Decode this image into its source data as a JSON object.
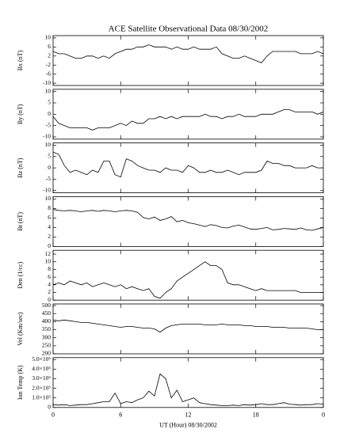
{
  "chart_data": [
    {
      "type": "line",
      "title": "ACE Satellite Observational Data   08/30/2002",
      "ylabel": "Bx (nT)",
      "x": [
        0,
        0.5,
        1,
        1.5,
        2,
        2.5,
        3,
        3.5,
        4,
        4.5,
        5,
        5.5,
        6,
        6.5,
        7,
        7.5,
        8,
        8.5,
        9,
        9.5,
        10,
        10.5,
        11,
        11.5,
        12,
        12.5,
        13,
        13.5,
        14,
        14.5,
        15,
        15.5,
        16,
        16.5,
        17,
        17.5,
        18,
        18.5,
        19,
        19.5,
        20,
        20.5,
        21,
        21.5,
        22,
        22.5,
        23,
        23.5,
        24
      ],
      "values": [
        4,
        3,
        3,
        2,
        1,
        1,
        2,
        2,
        1,
        2,
        1,
        3,
        4,
        5,
        5,
        6,
        6,
        7,
        6,
        6,
        6,
        5,
        6,
        5,
        5,
        6,
        5,
        5,
        5,
        6,
        3,
        2,
        1,
        1,
        2,
        1,
        0,
        -1,
        2,
        4,
        4,
        4,
        4,
        4,
        3,
        3,
        3,
        4,
        3
      ],
      "xlim": [
        0,
        24
      ],
      "xticks": [
        0,
        6,
        12,
        18,
        24
      ],
      "ylim": [
        -11,
        11
      ],
      "yticks": [
        10,
        6,
        2,
        -2,
        -6,
        -10
      ]
    },
    {
      "type": "line",
      "ylabel": "By (nT)",
      "x": [
        0,
        0.5,
        1,
        1.5,
        2,
        2.5,
        3,
        3.5,
        4,
        4.5,
        5,
        5.5,
        6,
        6.5,
        7,
        7.5,
        8,
        8.5,
        9,
        9.5,
        10,
        10.5,
        11,
        11.5,
        12,
        12.5,
        13,
        13.5,
        14,
        14.5,
        15,
        15.5,
        16,
        16.5,
        17,
        17.5,
        18,
        18.5,
        19,
        19.5,
        20,
        20.5,
        21,
        21.5,
        22,
        22.5,
        23,
        23.5,
        24
      ],
      "values": [
        -1,
        -4,
        -5,
        -6,
        -6,
        -6,
        -6,
        -7,
        -6,
        -6,
        -6,
        -5,
        -4,
        -5,
        -3,
        -4,
        -4,
        -2,
        -2,
        -1,
        -2,
        -1,
        -2,
        -1,
        -1,
        -1,
        -1,
        0,
        -1,
        -1,
        -2,
        -1,
        -1,
        0,
        -1,
        -1,
        -1,
        0,
        0,
        0,
        1,
        2,
        2,
        1,
        1,
        1,
        1,
        0,
        1
      ],
      "xlim": [
        0,
        24
      ],
      "xticks": [
        0,
        6,
        12,
        18,
        24
      ],
      "ylim": [
        -11,
        11
      ],
      "yticks": [
        10,
        5,
        0,
        -5,
        -10
      ]
    },
    {
      "type": "line",
      "ylabel": "Bz (nT)",
      "x": [
        0,
        0.5,
        1,
        1.5,
        2,
        2.5,
        3,
        3.5,
        4,
        4.5,
        5,
        5.5,
        6,
        6.5,
        7,
        7.5,
        8,
        8.5,
        9,
        9.5,
        10,
        10.5,
        11,
        11.5,
        12,
        12.5,
        13,
        13.5,
        14,
        14.5,
        15,
        15.5,
        16,
        16.5,
        17,
        17.5,
        18,
        18.5,
        19,
        19.5,
        20,
        20.5,
        21,
        21.5,
        22,
        22.5,
        23,
        23.5,
        24
      ],
      "values": [
        7,
        6,
        1,
        -2,
        -1,
        -2,
        -3,
        -1,
        -2,
        3,
        3,
        -3,
        -4,
        4,
        3,
        1,
        0,
        -1,
        -1,
        -2,
        0,
        -1,
        -1,
        -2,
        1,
        0,
        -2,
        -2,
        -1,
        -2,
        -2,
        -1,
        -2,
        -3,
        -2,
        -2,
        -2,
        -1,
        3,
        2,
        2,
        1,
        1,
        0,
        0,
        0,
        1,
        0,
        0
      ],
      "xlim": [
        0,
        24
      ],
      "xticks": [
        0,
        6,
        12,
        18,
        24
      ],
      "ylim": [
        -11,
        11
      ],
      "yticks": [
        10,
        5,
        0,
        -5,
        -10
      ]
    },
    {
      "type": "line",
      "ylabel": "Bt (nT)",
      "x": [
        0,
        0.5,
        1,
        1.5,
        2,
        2.5,
        3,
        3.5,
        4,
        4.5,
        5,
        5.5,
        6,
        6.5,
        7,
        7.5,
        8,
        8.5,
        9,
        9.5,
        10,
        10.5,
        11,
        11.5,
        12,
        12.5,
        13,
        13.5,
        14,
        14.5,
        15,
        15.5,
        16,
        16.5,
        17,
        17.5,
        18,
        18.5,
        19,
        19.5,
        20,
        20.5,
        21,
        21.5,
        22,
        22.5,
        23,
        23.5,
        24
      ],
      "values": [
        7.8,
        7.6,
        7.5,
        7.6,
        7.5,
        7.3,
        7.5,
        7.6,
        7.4,
        7.6,
        7.5,
        7.3,
        7.5,
        7.6,
        7.5,
        7.2,
        6.1,
        5.8,
        6.2,
        5.5,
        5.8,
        6.3,
        5.2,
        5.5,
        5.0,
        4.8,
        4.5,
        4.2,
        4.6,
        4.4,
        4.0,
        3.9,
        4.3,
        4.5,
        4.1,
        3.7,
        3.6,
        3.8,
        4.0,
        3.5,
        3.6,
        3.8,
        3.7,
        3.6,
        3.9,
        3.5,
        3.4,
        3.7,
        4.0
      ],
      "xlim": [
        0,
        24
      ],
      "xticks": [
        0,
        6,
        12,
        18,
        24
      ],
      "ylim": [
        0,
        10.5
      ],
      "yticks": [
        0,
        2,
        4,
        6,
        8,
        10
      ]
    },
    {
      "type": "line",
      "ylabel": "Den (1/cc)",
      "x": [
        0,
        0.5,
        1,
        1.5,
        2,
        2.5,
        3,
        3.5,
        4,
        4.5,
        5,
        5.5,
        6,
        6.5,
        7,
        7.5,
        8,
        8.5,
        9,
        9.5,
        10,
        10.5,
        11,
        11.5,
        12,
        12.5,
        13,
        13.5,
        14,
        14.5,
        15,
        15.5,
        16,
        16.5,
        17,
        17.5,
        18,
        18.5,
        19,
        19.5,
        20,
        20.5,
        21,
        21.5,
        22,
        22.5,
        23,
        23.5,
        24
      ],
      "values": [
        4,
        4.5,
        4,
        5,
        4.5,
        4,
        4.5,
        3.5,
        4,
        4.5,
        4,
        3.5,
        4,
        3,
        3.5,
        3,
        2.5,
        3,
        1,
        0.5,
        2,
        3,
        5,
        6,
        7,
        8,
        9,
        10,
        9,
        9,
        8,
        4.5,
        4,
        4,
        3.5,
        3,
        2.5,
        3,
        2.5,
        2.5,
        2.5,
        2.5,
        2.5,
        2.5,
        2,
        2,
        2,
        2,
        2
      ],
      "xlim": [
        0,
        24
      ],
      "xticks": [
        0,
        6,
        12,
        18,
        24
      ],
      "ylim": [
        0,
        13
      ],
      "yticks": [
        0,
        2,
        4,
        6,
        8,
        10,
        12
      ]
    },
    {
      "type": "line",
      "ylabel": "Vel (Km/sec)",
      "x": [
        0,
        0.5,
        1,
        1.5,
        2,
        2.5,
        3,
        3.5,
        4,
        4.5,
        5,
        5.5,
        6,
        6.5,
        7,
        7.5,
        8,
        8.5,
        9,
        9.5,
        10,
        10.5,
        11,
        11.5,
        12,
        12.5,
        13,
        13.5,
        14,
        14.5,
        15,
        15.5,
        16,
        16.5,
        17,
        17.5,
        18,
        18.5,
        19,
        19.5,
        20,
        20.5,
        21,
        21.5,
        22,
        22.5,
        23,
        23.5,
        24
      ],
      "values": [
        410,
        405,
        410,
        405,
        400,
        395,
        395,
        390,
        385,
        380,
        375,
        370,
        365,
        370,
        370,
        365,
        360,
        360,
        355,
        335,
        360,
        375,
        380,
        385,
        385,
        385,
        385,
        380,
        380,
        380,
        385,
        380,
        380,
        380,
        375,
        375,
        370,
        370,
        370,
        365,
        365,
        365,
        360,
        360,
        360,
        360,
        355,
        350,
        350
      ],
      "xlim": [
        0,
        24
      ],
      "xticks": [
        0,
        6,
        12,
        18,
        24
      ],
      "ylim": [
        200,
        510
      ],
      "yticks": [
        200,
        250,
        300,
        350,
        400,
        450,
        500
      ]
    },
    {
      "type": "line",
      "ylabel": "Ion Temp (K)",
      "xlabel": "UT (Hour)  08/30/2002",
      "x": [
        0,
        0.5,
        1,
        1.5,
        2,
        2.5,
        3,
        3.5,
        4,
        4.5,
        5,
        5.5,
        6,
        6.5,
        7,
        7.5,
        8,
        8.5,
        9,
        9.5,
        10,
        10.5,
        11,
        11.5,
        12,
        12.5,
        13,
        13.5,
        14,
        14.5,
        15,
        15.5,
        16,
        16.5,
        17,
        17.5,
        18,
        18.5,
        19,
        19.5,
        20,
        20.5,
        21,
        21.5,
        22,
        22.5,
        23,
        23.5,
        24
      ],
      "values": [
        30000,
        25000,
        30000,
        20000,
        25000,
        30000,
        30000,
        40000,
        50000,
        60000,
        60000,
        150000,
        40000,
        60000,
        50000,
        80000,
        100000,
        170000,
        120000,
        350000,
        300000,
        100000,
        180000,
        60000,
        80000,
        100000,
        50000,
        40000,
        30000,
        25000,
        20000,
        20000,
        25000,
        20000,
        30000,
        25000,
        30000,
        40000,
        30000,
        30000,
        40000,
        50000,
        35000,
        30000,
        25000,
        30000,
        30000,
        40000,
        35000
      ],
      "xlim": [
        0,
        24
      ],
      "xticks": [
        0,
        6,
        12,
        18,
        {
          "value": 24,
          "label": "0"
        }
      ],
      "ylim": [
        0,
        520000
      ],
      "yticks": [
        0,
        {
          "value": 100000,
          "label": "1.0×10⁵"
        },
        {
          "value": 200000,
          "label": "2.0×10⁵"
        },
        {
          "value": 300000,
          "label": "3.0×10⁵"
        },
        {
          "value": 400000,
          "label": "4.0×10⁵"
        },
        {
          "value": 500000,
          "label": "5.0×10⁵"
        }
      ]
    }
  ]
}
